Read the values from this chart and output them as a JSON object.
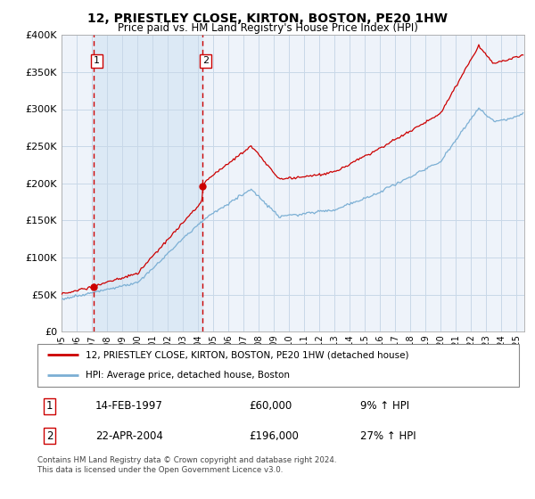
{
  "title": "12, PRIESTLEY CLOSE, KIRTON, BOSTON, PE20 1HW",
  "subtitle": "Price paid vs. HM Land Registry's House Price Index (HPI)",
  "legend_line1": "12, PRIESTLEY CLOSE, KIRTON, BOSTON, PE20 1HW (detached house)",
  "legend_line2": "HPI: Average price, detached house, Boston",
  "purchase1_date_label": "14-FEB-1997",
  "purchase1_price_label": "£60,000",
  "purchase1_hpi_label": "9% ↑ HPI",
  "purchase2_date_label": "22-APR-2004",
  "purchase2_price_label": "£196,000",
  "purchase2_hpi_label": "27% ↑ HPI",
  "purchase1_year": 1997.12,
  "purchase1_price": 60000,
  "purchase2_year": 2004.31,
  "purchase2_price": 196000,
  "xmin": 1995,
  "xmax": 2025.5,
  "ymin": 0,
  "ymax": 400000,
  "hpi_color": "#7bafd4",
  "price_color": "#cc0000",
  "shade_color": "#dce9f5",
  "grid_color": "#c8d8e8",
  "bg_color": "#eef3fa",
  "dashed_color": "#cc0000",
  "footer_text": "Contains HM Land Registry data © Crown copyright and database right 2024.\nThis data is licensed under the Open Government Licence v3.0.",
  "yticks": [
    0,
    50000,
    100000,
    150000,
    200000,
    250000,
    300000,
    350000,
    400000
  ],
  "ytick_labels": [
    "£0",
    "£50K",
    "£100K",
    "£150K",
    "£200K",
    "£250K",
    "£300K",
    "£350K",
    "£400K"
  ]
}
